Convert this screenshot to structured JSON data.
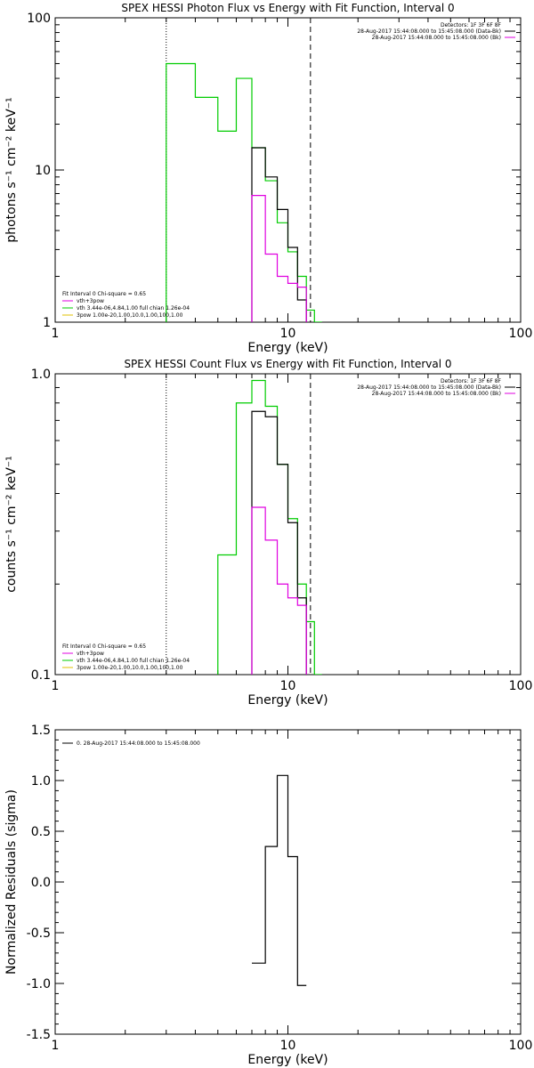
{
  "chart_data": [
    {
      "type": "line",
      "title": "SPEX HESSI Photon Flux vs Energy with Fit Function, Interval 0",
      "xlabel": "Energy (keV)",
      "ylabel": "photons s⁻¹ cm⁻² keV⁻¹",
      "xscale": "log",
      "yscale": "log",
      "xlim": [
        1,
        100
      ],
      "ylim": [
        1,
        100
      ],
      "xticks": [
        {
          "v": 1,
          "label": "1"
        },
        {
          "v": 10,
          "label": "10"
        },
        {
          "v": 100,
          "label": "100"
        }
      ],
      "yticks": [
        {
          "v": 1,
          "label": "1"
        },
        {
          "v": 10,
          "label": "10"
        },
        {
          "v": 100,
          "label": "100"
        }
      ],
      "vlines": [
        {
          "x": 3,
          "style": "dotted"
        },
        {
          "x": 12.5,
          "style": "dashed"
        }
      ],
      "legend_topright": [
        {
          "text": "Detectors: 1F 3F 6F 8F",
          "color": ""
        },
        {
          "text": "28-Aug-2017 15:44:08.000 to 15:45:08.000 (Data-Bk)",
          "color": "#000000"
        },
        {
          "text": "28-Aug-2017 15:44:08.000 to 15:45:08.000 (Bk)",
          "color": "#e000e0"
        }
      ],
      "legend_bottomleft": [
        {
          "text": "Fit Interval 0   Chi-square = 0.65",
          "color": ""
        },
        {
          "text": "vth+3pow",
          "color": "#e000e0"
        },
        {
          "text": "vth 3.44e-06,4.84,1.00  full chian 1.26e-04",
          "color": "#00cc00"
        },
        {
          "text": "3pow 1.00e-20,1.00,10.0,1.00,100,1.00",
          "color": "#e0c000"
        }
      ],
      "series": [
        {
          "color": "#00cc00",
          "edges": [
            3,
            4,
            5,
            6,
            7,
            8,
            9,
            10,
            11,
            12,
            13,
            14
          ],
          "values": [
            50,
            30,
            18,
            40,
            14,
            8.5,
            4.5,
            2.9,
            2.0,
            1.2,
            1.0
          ]
        },
        {
          "color": "#000000",
          "edges": [
            7,
            8,
            9,
            10,
            11,
            12
          ],
          "values": [
            14,
            9,
            5.5,
            3.1,
            1.4
          ]
        },
        {
          "color": "#e000e0",
          "edges": [
            7,
            8,
            9,
            10,
            11,
            12
          ],
          "values": [
            6.8,
            2.8,
            2.0,
            1.8,
            1.7
          ]
        }
      ]
    },
    {
      "type": "line",
      "title": "SPEX HESSI Count Flux vs Energy with Fit Function, Interval 0",
      "xlabel": "Energy (keV)",
      "ylabel": "counts s⁻¹ cm⁻² keV⁻¹",
      "xscale": "log",
      "yscale": "log",
      "xlim": [
        1,
        100
      ],
      "ylim": [
        0.1,
        1.0
      ],
      "xticks": [
        {
          "v": 1,
          "label": "1"
        },
        {
          "v": 10,
          "label": "10"
        },
        {
          "v": 100,
          "label": "100"
        }
      ],
      "yticks": [
        {
          "v": 0.1,
          "label": "0.1"
        },
        {
          "v": 1.0,
          "label": "1.0"
        }
      ],
      "vlines": [
        {
          "x": 3,
          "style": "dotted"
        },
        {
          "x": 12.5,
          "style": "dashed"
        }
      ],
      "legend_topright": [
        {
          "text": "Detectors: 1F 3F 6F 8F",
          "color": ""
        },
        {
          "text": "28-Aug-2017 15:44:08.000 to 15:45:08.000 (Data-Bk)",
          "color": "#000000"
        },
        {
          "text": "28-Aug-2017 15:44:08.000 to 15:45:08.000 (Bk)",
          "color": "#e000e0"
        }
      ],
      "legend_bottomleft": [
        {
          "text": "Fit Interval 0   Chi-square = 0.65",
          "color": ""
        },
        {
          "text": "vth+3pow",
          "color": "#e000e0"
        },
        {
          "text": "vth 3.44e-06,4.84,1.00  full chian 1.26e-04",
          "color": "#00cc00"
        },
        {
          "text": "3pow 1.00e-20,1.00,10.0,1.00,100,1.00",
          "color": "#e0c000"
        }
      ],
      "series": [
        {
          "color": "#00cc00",
          "edges": [
            5,
            6,
            7,
            8,
            9,
            10,
            11,
            12,
            13,
            14
          ],
          "values": [
            0.25,
            0.8,
            0.95,
            0.78,
            0.5,
            0.33,
            0.2,
            0.15,
            0.1
          ]
        },
        {
          "color": "#000000",
          "edges": [
            7,
            8,
            9,
            10,
            11,
            12
          ],
          "values": [
            0.75,
            0.72,
            0.5,
            0.32,
            0.18
          ]
        },
        {
          "color": "#e000e0",
          "edges": [
            7,
            8,
            9,
            10,
            11,
            12
          ],
          "values": [
            0.36,
            0.28,
            0.2,
            0.18,
            0.17
          ]
        }
      ]
    },
    {
      "type": "line",
      "title": "",
      "xlabel": "Energy (keV)",
      "ylabel": "Normalized Residuals (sigma)",
      "xscale": "log",
      "yscale": "linear",
      "xlim": [
        1,
        100
      ],
      "ylim": [
        -1.5,
        1.5
      ],
      "xticks": [
        {
          "v": 1,
          "label": "1"
        },
        {
          "v": 10,
          "label": "10"
        },
        {
          "v": 100,
          "label": "100"
        }
      ],
      "yticks": [
        {
          "v": 1.5,
          "label": "1.5"
        },
        {
          "v": 1.0,
          "label": "1.0"
        },
        {
          "v": 0.5,
          "label": "0.5"
        },
        {
          "v": 0.0,
          "label": "0.0"
        },
        {
          "v": -0.5,
          "label": "-0.5"
        },
        {
          "v": -1.0,
          "label": "-1.0"
        },
        {
          "v": -1.5,
          "label": "-1.5"
        }
      ],
      "vlines": [],
      "legend_topleft": [
        {
          "text": "0. 28-Aug-2017 15:44:08.000 to 15:45:08.000",
          "color": "#000000"
        }
      ],
      "series": [
        {
          "color": "#000000",
          "edges": [
            7,
            8,
            9,
            10,
            11,
            12
          ],
          "values": [
            -0.8,
            0.35,
            1.05,
            0.25,
            -1.02
          ]
        }
      ]
    }
  ]
}
